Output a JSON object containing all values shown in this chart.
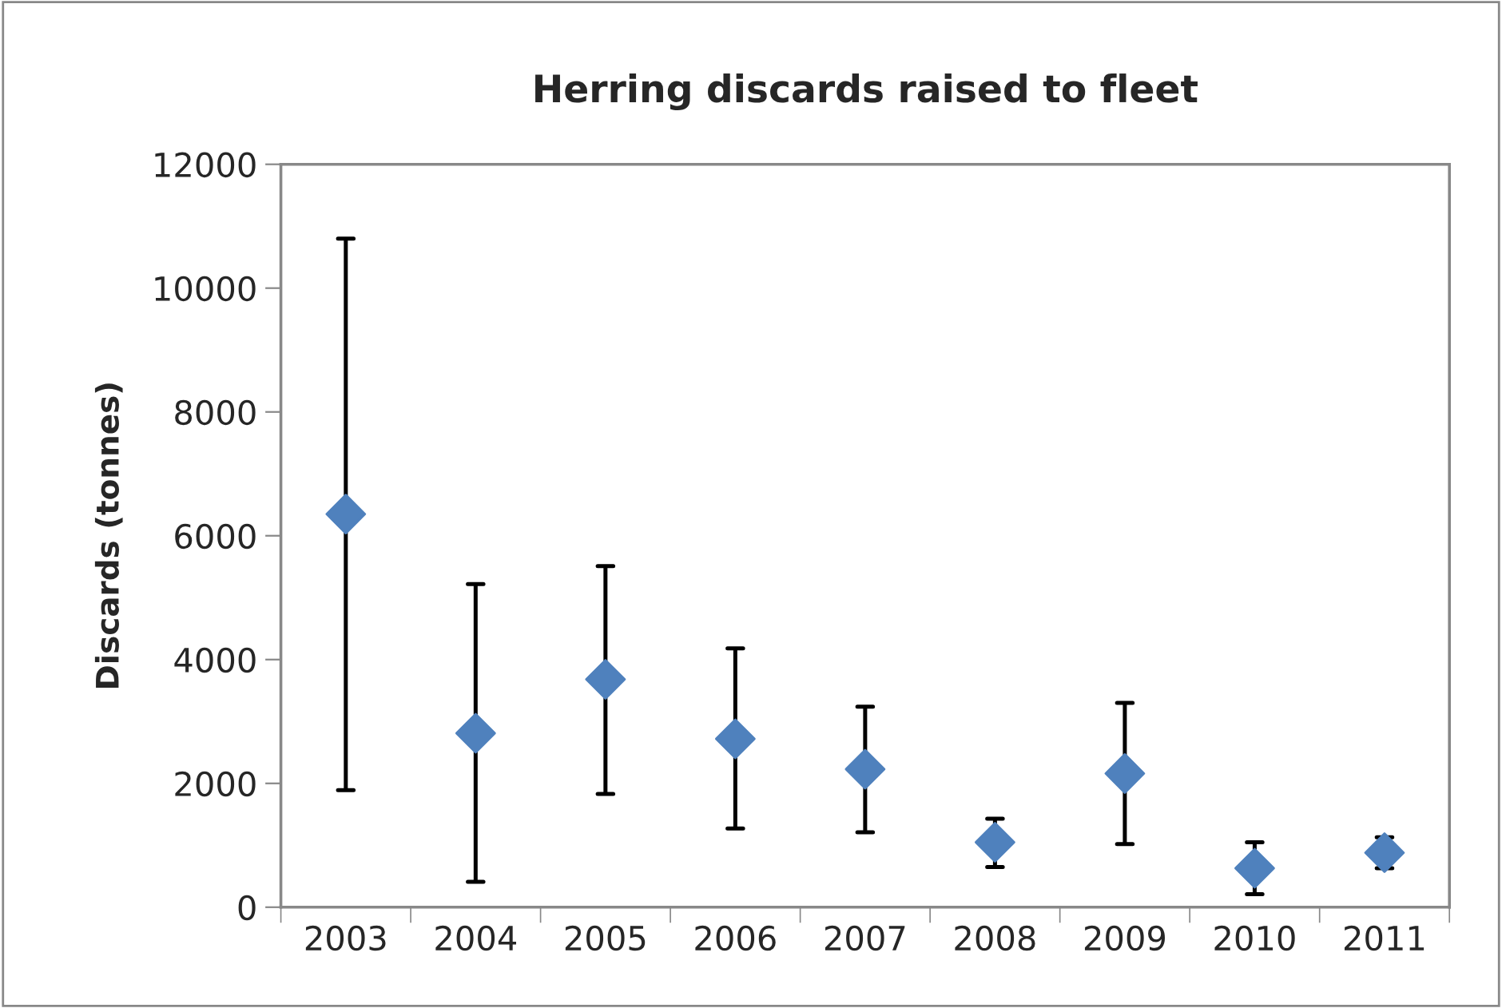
{
  "chart_data": {
    "type": "scatter",
    "title": "Herring discards raised to fleet",
    "ylabel": "Discards (tonnes)",
    "categories": [
      "2003",
      "2004",
      "2005",
      "2006",
      "2007",
      "2008",
      "2009",
      "2010",
      "2011"
    ],
    "series": [
      {
        "color": "#4f81bd",
        "values": [
          6350,
          2810,
          3680,
          2720,
          2230,
          1050,
          2160,
          630,
          880
        ],
        "errors": [
          [
            1890,
            10800
          ],
          [
            410,
            5220
          ],
          [
            1830,
            5510
          ],
          [
            1270,
            4180
          ],
          [
            1210,
            3240
          ],
          [
            650,
            1430
          ],
          [
            1020,
            3300
          ],
          [
            210,
            1050
          ],
          [
            630,
            1130
          ]
        ]
      }
    ],
    "ylim": [
      0,
      12000
    ],
    "yticks": [
      0,
      2000,
      4000,
      6000,
      8000,
      10000,
      12000
    ],
    "marker": "diamond"
  }
}
